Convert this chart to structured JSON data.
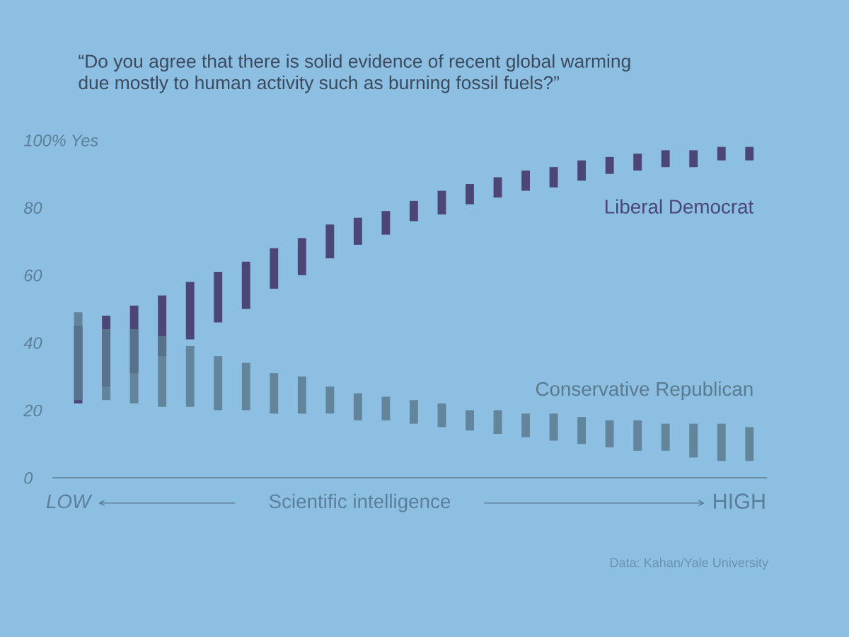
{
  "chart_data": {
    "type": "bar",
    "title": "“Do you agree that there is solid evidence of recent global warming\ndue mostly to human activity such as burning fossil fuels?”",
    "xlabel": "Scientific intelligence",
    "categories": [
      null,
      null,
      null,
      null,
      null,
      null,
      null,
      null,
      null,
      null,
      null,
      null,
      null,
      null,
      null,
      null,
      null,
      null,
      null,
      null,
      null,
      null,
      null,
      null,
      null
    ],
    "series": [
      {
        "name": "Liberal Democrat",
        "color": "#4b4676",
        "base": [
          22,
          27,
          31,
          36,
          41,
          46,
          50,
          56,
          60,
          65,
          69,
          72,
          76,
          78,
          81,
          83,
          85,
          86,
          88,
          90,
          91,
          92,
          92,
          94,
          94
        ],
        "values": [
          23,
          21,
          20,
          18,
          17,
          15,
          14,
          12,
          11,
          10,
          8,
          7,
          6,
          7,
          6,
          6,
          6,
          6,
          6,
          5,
          5,
          5,
          5,
          4,
          4
        ]
      },
      {
        "name": "Conservative Republican",
        "color": "#5a7a8f",
        "base": [
          23,
          23,
          22,
          21,
          21,
          20,
          20,
          19,
          19,
          19,
          17,
          17,
          16,
          15,
          14,
          13,
          12,
          11,
          10,
          9,
          8,
          8,
          6,
          5,
          5
        ],
        "values": [
          26,
          21,
          22,
          21,
          18,
          16,
          14,
          12,
          11,
          8,
          8,
          7,
          7,
          7,
          6,
          7,
          7,
          8,
          8,
          8,
          9,
          8,
          10,
          11,
          10
        ]
      }
    ],
    "ylim": [
      0,
      100
    ],
    "yticks": [
      0,
      20,
      40,
      60,
      80,
      {
        "value": 100,
        "label": "100% Yes"
      }
    ],
    "tick_labels": "y",
    "grid": false,
    "annotations": [
      "LOW",
      "HIGH",
      "Data: Kahan/Yale University"
    ]
  }
}
